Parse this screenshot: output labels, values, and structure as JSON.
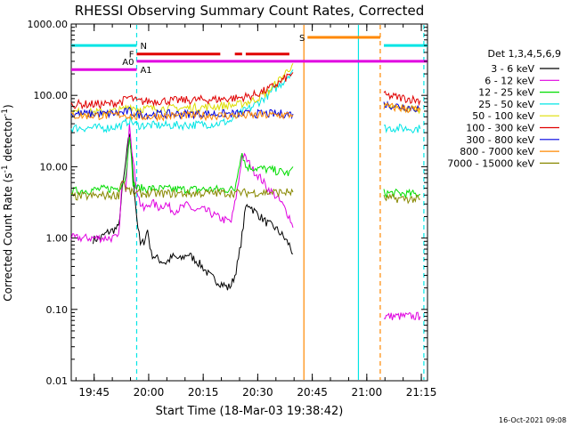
{
  "chart_data": {
    "type": "line",
    "title": "RHESSI Observing Summary Count Rates, Corrected",
    "xlabel": "Start Time (18-Mar-03 19:38:42)",
    "ylabel": "Corrected Count Rate (s",
    "ylabel_sup": "-1",
    "ylabel_end": " detector",
    "ylabel_end_sup": "-1",
    "ylabel_close": ")",
    "y_scale": "log",
    "ylim": [
      0.01,
      1000
    ],
    "xlim_minutes": [
      0,
      98
    ],
    "x_tick_labels": [
      {
        "label": "19:45",
        "minute": 6.3
      },
      {
        "label": "20:00",
        "minute": 21.3
      },
      {
        "label": "20:15",
        "minute": 36.3
      },
      {
        "label": "20:30",
        "minute": 51.3
      },
      {
        "label": "20:45",
        "minute": 66.3
      },
      {
        "label": "21:00",
        "minute": 81.3
      },
      {
        "label": "21:15",
        "minute": 96.3
      }
    ],
    "y_tick_labels": [
      "1000.00",
      "100.00",
      "10.00",
      "1.00",
      "0.10",
      "0.01"
    ],
    "y_tick_values": [
      1000,
      100,
      10,
      1,
      0.1,
      0.01
    ],
    "legend": {
      "placement": "right",
      "header": "Det 1,3,4,5,6,9",
      "entries": [
        {
          "name": "3 - 6 keV",
          "color": "#000000"
        },
        {
          "name": "6 - 12 keV",
          "color": "#e000e0"
        },
        {
          "name": "12 - 25 keV",
          "color": "#00dd00"
        },
        {
          "name": "25 - 50 keV",
          "color": "#00e5e5"
        },
        {
          "name": "50 - 100 keV",
          "color": "#dddd00"
        },
        {
          "name": "100 - 300 keV",
          "color": "#e00000"
        },
        {
          "name": "300 - 800 keV",
          "color": "#0000e0"
        },
        {
          "name": "800 - 7000 keV",
          "color": "#ff8800"
        },
        {
          "name": "7000 - 15000 keV",
          "color": "#888800"
        }
      ]
    },
    "series": [
      {
        "name": "3 - 6 keV",
        "color": "#000000",
        "segments": [
          [
            [
              6,
              0.95
            ],
            [
              8,
              1
            ],
            [
              10,
              1.2
            ],
            [
              13,
              1.4
            ],
            [
              14,
              4.5
            ],
            [
              16,
              30
            ],
            [
              17,
              8
            ],
            [
              18,
              2
            ],
            [
              19,
              0.8
            ],
            [
              20,
              0.9
            ],
            [
              21,
              1.3
            ],
            [
              22,
              0.6
            ],
            [
              24,
              0.5
            ],
            [
              26,
              0.45
            ],
            [
              28,
              0.55
            ],
            [
              30,
              0.5
            ],
            [
              32,
              0.6
            ],
            [
              34,
              0.5
            ],
            [
              36,
              0.4
            ],
            [
              38,
              0.3
            ],
            [
              40,
              0.25
            ],
            [
              42,
              0.22
            ],
            [
              43,
              0.2
            ],
            [
              44,
              0.22
            ],
            [
              45,
              0.3
            ],
            [
              46,
              0.5
            ],
            [
              47,
              1.1
            ],
            [
              48,
              2.7
            ],
            [
              49,
              3
            ],
            [
              50,
              2.5
            ],
            [
              52,
              2
            ],
            [
              54,
              1.6
            ],
            [
              56,
              1.4
            ],
            [
              58,
              1.1
            ],
            [
              60,
              0.8
            ],
            [
              61,
              0.6
            ]
          ]
        ]
      },
      {
        "name": "6 - 12 keV",
        "color": "#e000e0",
        "segments": [
          [
            [
              0,
              1
            ],
            [
              13,
              1
            ],
            [
              14,
              6
            ],
            [
              15,
              5
            ],
            [
              16,
              45
            ],
            [
              17,
              12
            ],
            [
              18,
              5
            ],
            [
              19,
              3
            ],
            [
              20,
              2.5
            ],
            [
              22,
              3.2
            ],
            [
              24,
              2.7
            ],
            [
              26,
              3
            ],
            [
              28,
              2.4
            ],
            [
              30,
              2.6
            ],
            [
              32,
              2.9
            ],
            [
              34,
              2.4
            ],
            [
              36,
              2.5
            ],
            [
              38,
              2.3
            ],
            [
              40,
              2
            ],
            [
              42,
              1.8
            ],
            [
              44,
              1.7
            ],
            [
              45,
              3
            ],
            [
              46,
              6
            ],
            [
              47,
              15
            ],
            [
              48,
              13
            ],
            [
              49,
              11
            ],
            [
              50,
              9
            ],
            [
              52,
              7
            ],
            [
              54,
              5
            ],
            [
              56,
              4
            ],
            [
              58,
              3
            ],
            [
              60,
              2
            ],
            [
              61,
              1.4
            ]
          ],
          [
            [
              86,
              0.08
            ],
            [
              96,
              0.08
            ]
          ]
        ]
      },
      {
        "name": "12 - 25 keV",
        "color": "#00dd00",
        "segments": [
          [
            [
              0,
              4.5
            ],
            [
              13,
              5
            ],
            [
              15,
              7
            ],
            [
              16,
              30
            ],
            [
              17,
              6
            ],
            [
              18,
              5
            ],
            [
              30,
              4.8
            ],
            [
              45,
              4.8
            ],
            [
              46,
              10
            ],
            [
              47,
              16
            ],
            [
              48,
              10
            ],
            [
              55,
              9
            ],
            [
              60,
              8
            ],
            [
              61,
              10
            ]
          ],
          [
            [
              86,
              4.3
            ],
            [
              96,
              4.1
            ]
          ]
        ]
      },
      {
        "name": "25 - 50 keV",
        "color": "#00e5e5",
        "segments": [
          [
            [
              0,
              35
            ],
            [
              10,
              35
            ],
            [
              14,
              38
            ],
            [
              16,
              45
            ],
            [
              18,
              38
            ],
            [
              30,
              38
            ],
            [
              40,
              40
            ],
            [
              44,
              44
            ],
            [
              47,
              58
            ],
            [
              50,
              70
            ],
            [
              54,
              100
            ],
            [
              58,
              150
            ],
            [
              61,
              230
            ]
          ],
          [
            [
              86,
              35
            ],
            [
              96,
              34
            ]
          ]
        ]
      },
      {
        "name": "50 - 100 keV",
        "color": "#dddd00",
        "segments": [
          [
            [
              0,
              58
            ],
            [
              10,
              58
            ],
            [
              14,
              62
            ],
            [
              16,
              72
            ],
            [
              18,
              65
            ],
            [
              30,
              66
            ],
            [
              40,
              70
            ],
            [
              46,
              74
            ],
            [
              50,
              85
            ],
            [
              54,
              110
            ],
            [
              58,
              180
            ],
            [
              61,
              280
            ]
          ],
          [
            [
              86,
              68
            ],
            [
              96,
              64
            ]
          ]
        ]
      },
      {
        "name": "100 - 300 keV",
        "color": "#e00000",
        "segments": [
          [
            [
              0,
              75
            ],
            [
              10,
              75
            ],
            [
              14,
              82
            ],
            [
              16,
              95
            ],
            [
              18,
              82
            ],
            [
              30,
              85
            ],
            [
              40,
              88
            ],
            [
              46,
              92
            ],
            [
              50,
              100
            ],
            [
              54,
              120
            ],
            [
              58,
              160
            ],
            [
              61,
              210
            ]
          ],
          [
            [
              86,
              100
            ],
            [
              96,
              85
            ]
          ]
        ]
      },
      {
        "name": "300 - 800 keV",
        "color": "#0000e0",
        "segments": [
          [
            [
              0,
              55
            ],
            [
              10,
              55
            ],
            [
              14,
              57
            ],
            [
              16,
              60
            ],
            [
              18,
              54
            ],
            [
              30,
              55
            ],
            [
              45,
              55
            ],
            [
              61,
              55
            ]
          ],
          [
            [
              86,
              75
            ],
            [
              96,
              65
            ]
          ]
        ]
      },
      {
        "name": "800 - 7000 keV",
        "color": "#ff8800",
        "segments": [
          [
            [
              0,
              52
            ],
            [
              10,
              52
            ],
            [
              14,
              54
            ],
            [
              18,
              50
            ],
            [
              30,
              52
            ],
            [
              45,
              52
            ],
            [
              61,
              53
            ]
          ],
          [
            [
              86,
              70
            ],
            [
              96,
              62
            ]
          ]
        ]
      },
      {
        "name": "7000 - 15000 keV",
        "color": "#888800",
        "segments": [
          [
            [
              0,
              3.8
            ],
            [
              13,
              4
            ],
            [
              14,
              7
            ],
            [
              15,
              5
            ],
            [
              17,
              4.2
            ],
            [
              30,
              4.2
            ],
            [
              45,
              4.3
            ],
            [
              61,
              4.4
            ]
          ],
          [
            [
              86,
              3.6
            ],
            [
              96,
              3.5
            ]
          ]
        ]
      }
    ],
    "flag_bars": [
      {
        "label": "N",
        "color": "#00e5e5",
        "level": 500,
        "ranges": [
          [
            0,
            18
          ],
          [
            86,
            98
          ]
        ]
      },
      {
        "label": "S",
        "color": "#ff8800",
        "level": 650,
        "ranges": [
          [
            65,
            85
          ]
        ]
      },
      {
        "label": "F",
        "color": "#e00000",
        "level": 380,
        "ranges": [
          [
            18,
            41
          ],
          [
            45,
            47
          ],
          [
            48,
            60
          ]
        ]
      },
      {
        "label": "A0",
        "color": "#e000e0",
        "level": 300,
        "ranges": [
          [
            18,
            98
          ]
        ]
      },
      {
        "label": "A1",
        "color": "#e000e0",
        "level": 230,
        "ranges": [
          [
            0,
            18
          ]
        ]
      }
    ],
    "vertical_markers": [
      {
        "minute": 18,
        "color": "#00e5e5",
        "style": "dashed"
      },
      {
        "minute": 64,
        "color": "#ff8800",
        "style": "solid"
      },
      {
        "minute": 79,
        "color": "#00e5e5",
        "style": "solid"
      },
      {
        "minute": 85,
        "color": "#ff8800",
        "style": "dashed"
      },
      {
        "minute": 97,
        "color": "#00e5e5",
        "style": "dashed"
      }
    ],
    "timestamp": "16-Oct-2021 09:08"
  }
}
